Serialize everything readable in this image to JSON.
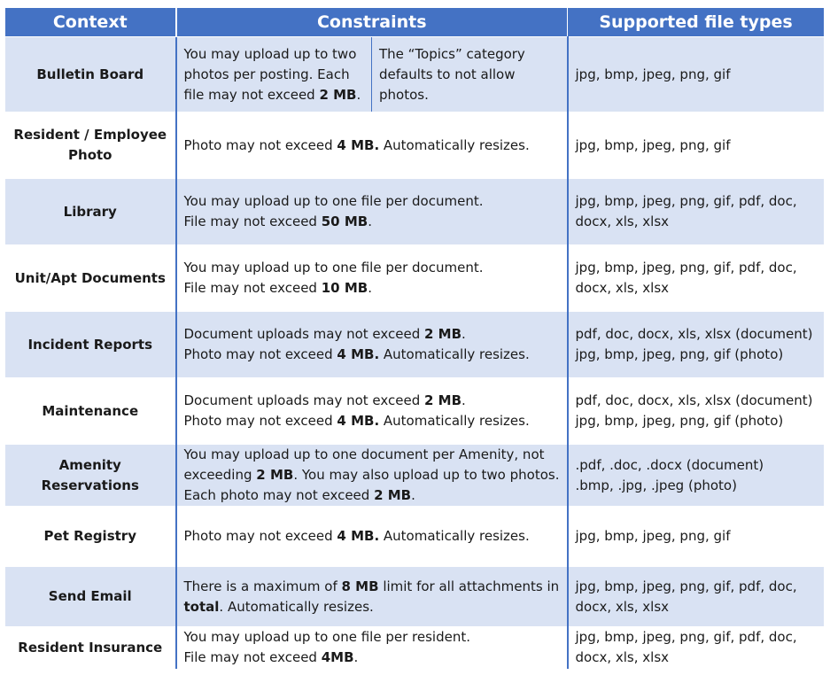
{
  "headers": {
    "context": "Context",
    "constraints": "Constraints",
    "file_types": "Supported file types"
  },
  "rows": [
    {
      "context": "Bulletin Board",
      "c1a": "You may upload up to two photos per posting. Each file may not exceed ",
      "c1b": "2 MB",
      "c1c": ".",
      "c2": "The “Topics” category defaults to not allow photos.",
      "f1": "jpg, bmp, jpeg, png, gif"
    },
    {
      "context": "Resident / Employee Photo",
      "c1a": "Photo may not exceed ",
      "c1b": "4 MB.",
      "c1c": " Automatically resizes.",
      "f1": "jpg, bmp, jpeg, png, gif"
    },
    {
      "context": "Library",
      "c1a": "You may upload up to one file per document.",
      "c2a": "File may not exceed ",
      "c2b": "50 MB",
      "c2c": ".",
      "f1": "jpg, bmp, jpeg, png, gif, pdf, doc,",
      "f2": "docx, xls, xlsx"
    },
    {
      "context": "Unit/Apt Documents",
      "c1a": "You may upload up to one file per document.",
      "c2a": "File may not exceed ",
      "c2b": "10 MB",
      "c2c": ".",
      "f1": "jpg, bmp, jpeg, png, gif, pdf, doc,",
      "f2": "docx, xls, xlsx"
    },
    {
      "context": "Incident Reports",
      "c1a": "Document uploads may not exceed ",
      "c1b": "2 MB",
      "c1c": ".",
      "c2a": "Photo may not exceed ",
      "c2b": "4 MB.",
      "c2c": " Automatically resizes.",
      "f1": "pdf, doc, docx, xls, xlsx (document)",
      "f2": "jpg, bmp, jpeg, png, gif (photo)"
    },
    {
      "context": "Maintenance",
      "c1a": "Document uploads may not exceed ",
      "c1b": "2 MB",
      "c1c": ".",
      "c2a": "Photo may not exceed ",
      "c2b": "4 MB.",
      "c2c": " Automatically resizes.",
      "f1": "pdf, doc, docx, xls, xlsx (document)",
      "f2": "jpg, bmp, jpeg, png, gif (photo)"
    },
    {
      "context": "Amenity Reservations",
      "c1a": "You may upload up to one document per Amenity, not exceeding ",
      "c1b": "2 MB",
      "c1c": ". You may also upload up to two photos. Each photo may not exceed ",
      "c1d": "2 MB",
      "c1e": ".",
      "f1": ".pdf, .doc, .docx (document)",
      "f2": ".bmp, .jpg, .jpeg (photo)"
    },
    {
      "context": "Pet Registry",
      "c1a": "Photo may not exceed ",
      "c1b": "4 MB.",
      "c1c": " Automatically resizes.",
      "f1": "jpg, bmp, jpeg, png, gif"
    },
    {
      "context": "Send Email",
      "c1a": "There is a maximum of ",
      "c1b": "8 MB",
      "c1c": " limit for all attachments in ",
      "c1d": "total",
      "c1e": ". Automatically resizes.",
      "f1": "jpg, bmp, jpeg, png, gif, pdf, doc,",
      "f2": "docx, xls, xlsx"
    },
    {
      "context": "Resident Insurance",
      "c1a": "You may upload up to one file per resident.",
      "c2a": "File may not exceed ",
      "c2b": "4MB",
      "c2c": ".",
      "f1": "jpg, bmp, jpeg, png, gif, pdf, doc,",
      "f2": "docx, xls, xlsx"
    }
  ],
  "colors": {
    "header_bg": "#4472c4",
    "band_bg": "#d9e2f3",
    "rule": "#4472c4"
  }
}
